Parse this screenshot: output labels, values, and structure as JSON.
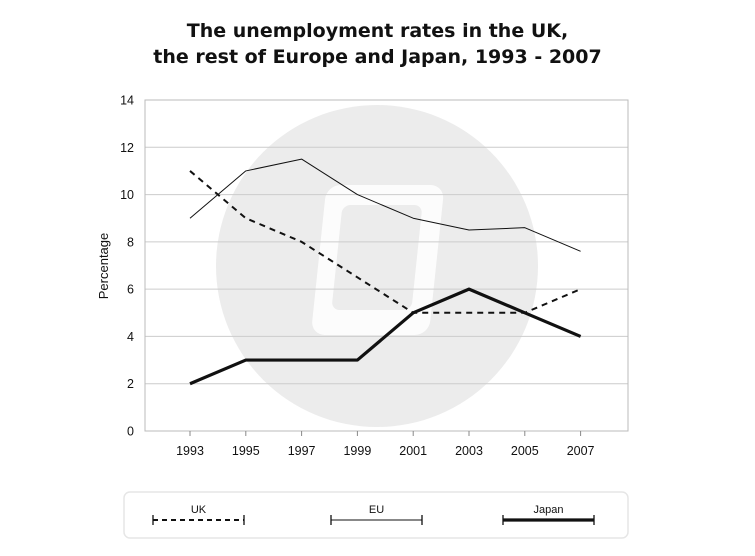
{
  "chart_data": {
    "type": "line",
    "title_lines": [
      "The unemployment rates in the UK,",
      "the rest of Europe and Japan, 1993 - 2007"
    ],
    "xlabel": "",
    "ylabel": "Percentage",
    "categories": [
      "1993",
      "1995",
      "1997",
      "1999",
      "2001",
      "2003",
      "2005",
      "2007"
    ],
    "ylim": [
      0,
      14
    ],
    "yticks": [
      0,
      2,
      4,
      6,
      8,
      10,
      12,
      14
    ],
    "grid": "horizontal",
    "legend_position": "bottom",
    "series": [
      {
        "name": "UK",
        "style": "dashed",
        "color": "#111111",
        "values": [
          11,
          9,
          8,
          6.5,
          5,
          5,
          5,
          6
        ]
      },
      {
        "name": "EU",
        "style": "thin",
        "color": "#111111",
        "values": [
          9,
          11,
          11.5,
          10,
          9,
          8.5,
          8.6,
          7.6
        ]
      },
      {
        "name": "Japan",
        "style": "thick",
        "color": "#111111",
        "values": [
          2,
          3,
          3,
          3,
          5,
          6,
          5,
          4
        ]
      }
    ]
  },
  "watermark_color": "#ececec",
  "grid_color": "#cccccc",
  "legend_border_color": "#e6e6e6"
}
